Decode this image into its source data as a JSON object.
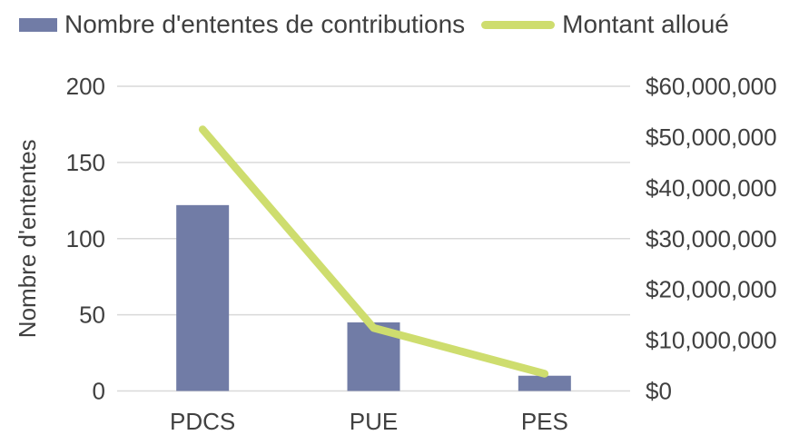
{
  "legend": {
    "items": [
      {
        "label": "Nombre d'ententes de contributions",
        "swatch": "bar",
        "color": "#717CA6"
      },
      {
        "label": "Montant alloué",
        "swatch": "line",
        "color": "#CEDD6E"
      }
    ]
  },
  "chart_data": {
    "type": "combo-bar-line",
    "title": "",
    "categories": [
      "PDCS",
      "PUE",
      "PES"
    ],
    "series": [
      {
        "name": "Nombre d'ententes de contributions",
        "type": "bar",
        "axis": "left",
        "color": "#717CA6",
        "values": [
          122,
          45,
          10
        ]
      },
      {
        "name": "Montant alloué",
        "type": "line",
        "axis": "right",
        "color": "#CEDD6E",
        "values": [
          51500000,
          12400000,
          3400000
        ]
      }
    ],
    "left_axis": {
      "title": "Nombre d'ententes",
      "min": 0,
      "max": 200,
      "ticks": [
        0,
        50,
        100,
        150,
        200
      ],
      "tick_labels": [
        "0",
        "50",
        "100",
        "150",
        "200"
      ]
    },
    "right_axis": {
      "title": "",
      "min": 0,
      "max": 60000000,
      "ticks": [
        0,
        10000000,
        20000000,
        30000000,
        40000000,
        50000000,
        60000000
      ],
      "tick_labels": [
        "$0",
        "$10,000,000",
        "$20,000,000",
        "$30,000,000",
        "$40,000,000",
        "$50,000,000",
        "$60,000,000"
      ]
    },
    "grid": true,
    "legend_position": "top"
  },
  "colors": {
    "grid": "#D9D9D9",
    "text": "#404040",
    "background": "#FFFFFF"
  }
}
